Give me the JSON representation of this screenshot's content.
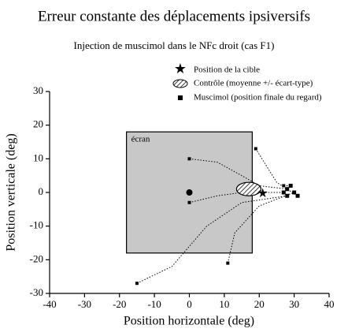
{
  "chart_data": {
    "type": "trajectory",
    "title": "Erreur constante des déplacements ipsiversifs",
    "subtitle": "Injection de muscimol dans le NFc droit (cas  F1)",
    "x_label": "Position horizontale (deg)",
    "y_label": "Position verticale (deg)",
    "xlim": [
      -40,
      40
    ],
    "ylim": [
      -30,
      30
    ],
    "xticks": [
      -40,
      -30,
      -20,
      -10,
      0,
      10,
      20,
      30,
      40
    ],
    "yticks": [
      -30,
      -20,
      -10,
      0,
      10,
      20,
      30
    ],
    "legend": [
      "Position de la cible",
      "Contrôle (moyenne +/- écart-type)",
      "Muscimol (position finale du regard)"
    ],
    "screen": {
      "label": "écran",
      "xlim": [
        -18,
        18
      ],
      "ylim": [
        -18,
        18
      ],
      "color": "#c8c8c8"
    },
    "fixation": {
      "x": 0,
      "y": 0
    },
    "target": {
      "x": 21,
      "y": -0.5
    },
    "control": {
      "cx": 17,
      "cy": 1,
      "rx": 3.5,
      "ry": 2
    },
    "trajectories": [
      {
        "x": [
          0,
          8,
          15,
          20,
          28
        ],
        "y": [
          10,
          9,
          5,
          2,
          1
        ]
      },
      {
        "x": [
          0,
          8,
          15,
          27
        ],
        "y": [
          -3,
          -1,
          0,
          0
        ]
      },
      {
        "x": [
          -15,
          -5,
          5,
          15,
          28
        ],
        "y": [
          -27,
          -22,
          -10,
          -3,
          -1
        ]
      },
      {
        "x": [
          11,
          13,
          20,
          30
        ],
        "y": [
          -21,
          -12,
          -4,
          0
        ]
      },
      {
        "x": [
          19,
          22,
          25,
          31
        ],
        "y": [
          13,
          8,
          3,
          -1
        ]
      },
      {
        "x": [
          27,
          29
        ],
        "y": [
          2,
          2
        ]
      }
    ],
    "color": "#000000"
  }
}
